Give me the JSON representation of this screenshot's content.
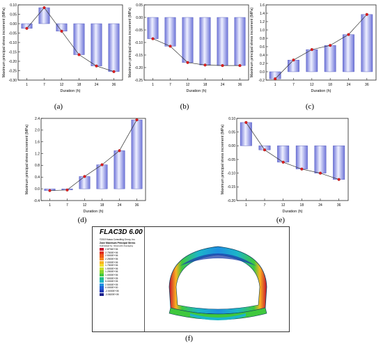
{
  "chart_data": [
    {
      "panel": "(a)",
      "type": "bar",
      "categories": [
        "1",
        "7",
        "12",
        "18",
        "24",
        "36"
      ],
      "values": [
        -0.025,
        0.085,
        -0.04,
        -0.165,
        -0.225,
        -0.255
      ],
      "ylim": [
        -0.3,
        0.1
      ],
      "yticks": [
        -0.3,
        -0.25,
        -0.2,
        -0.15,
        -0.1,
        -0.05,
        0.0,
        0.05,
        0.1
      ],
      "ytick_decimals": 2,
      "xlabel": "Duration (h)",
      "ylabel": "Maximum principal stress increment (MPa)"
    },
    {
      "panel": "(b)",
      "type": "bar",
      "categories": [
        "1",
        "7",
        "12",
        "18",
        "24",
        "36"
      ],
      "values": [
        -0.085,
        -0.115,
        -0.18,
        -0.19,
        -0.192,
        -0.192
      ],
      "ylim": [
        -0.25,
        0.05
      ],
      "yticks": [
        -0.25,
        -0.2,
        -0.15,
        -0.1,
        -0.05,
        0.0,
        0.05
      ],
      "ytick_decimals": 2,
      "xlabel": "Duration (h)",
      "ylabel": "Maximum principal stress increment (MPa)"
    },
    {
      "panel": "(c)",
      "type": "bar",
      "categories": [
        "1",
        "7",
        "12",
        "18",
        "24",
        "36"
      ],
      "values": [
        -0.17,
        0.28,
        0.53,
        0.63,
        0.89,
        1.37
      ],
      "ylim": [
        -0.2,
        1.6
      ],
      "yticks": [
        -0.2,
        0.0,
        0.2,
        0.4,
        0.6,
        0.8,
        1.0,
        1.2,
        1.4,
        1.6
      ],
      "ytick_decimals": 1,
      "xlabel": "Duration (h)",
      "ylabel": "Maximum principal stress increment (MPa)"
    },
    {
      "panel": "(d)",
      "type": "bar",
      "categories": [
        "1",
        "7",
        "12",
        "18",
        "24",
        "36"
      ],
      "values": [
        -0.06,
        -0.04,
        0.42,
        0.82,
        1.3,
        2.35
      ],
      "ylim": [
        -0.4,
        2.4
      ],
      "yticks": [
        -0.4,
        0.0,
        0.4,
        0.8,
        1.2,
        1.6,
        2.0,
        2.4
      ],
      "ytick_decimals": 1,
      "xlabel": "Duration (h)",
      "ylabel": "Maximum principal stress increment (MPa)"
    },
    {
      "panel": "(e)",
      "type": "bar",
      "categories": [
        "1",
        "7",
        "12",
        "18",
        "24",
        "36"
      ],
      "values": [
        0.085,
        -0.015,
        -0.06,
        -0.085,
        -0.1,
        -0.123
      ],
      "ylim": [
        -0.2,
        0.1
      ],
      "yticks": [
        -0.2,
        -0.15,
        -0.1,
        -0.05,
        0.0,
        0.05,
        0.1
      ],
      "ytick_decimals": 2,
      "xlabel": "Duration (h)",
      "ylabel": "Maximum principal stress increment (MPa)"
    }
  ],
  "flac": {
    "panel": "(f)",
    "title": "FLAC3D 6.00",
    "copyright": "©2019 Itasca Consulting Group, Inc.",
    "contour_title": "Zone Maximum Principal Stress",
    "calc_note": "Calculated by: Volumetric Averaging",
    "legend": [
      {
        "label": "2.8794E+06",
        "color": "#c8102e"
      },
      {
        "label": "2.7500E+06",
        "color": "#e0301e"
      },
      {
        "label": "2.5000E+06",
        "color": "#f05a1a"
      },
      {
        "label": "2.2500E+06",
        "color": "#f7871c"
      },
      {
        "label": "2.0000E+06",
        "color": "#f9b322"
      },
      {
        "label": "1.7500E+06",
        "color": "#f4dc2a"
      },
      {
        "label": "1.5000E+06",
        "color": "#c8e02a"
      },
      {
        "label": "1.2500E+06",
        "color": "#86d62e"
      },
      {
        "label": "1.0000E+06",
        "color": "#3fc83e"
      },
      {
        "label": "7.5000E+05",
        "color": "#22c08a"
      },
      {
        "label": "5.0000E+05",
        "color": "#1cb6c8"
      },
      {
        "label": "2.5000E+05",
        "color": "#1e8fe0"
      },
      {
        "label": "0.0000E+00",
        "color": "#2060d8"
      },
      {
        "label": "-2.5000E+05",
        "color": "#1f3bb8"
      },
      {
        "label": "-3.5820E+05",
        "color": "#1a1f8c"
      }
    ]
  }
}
